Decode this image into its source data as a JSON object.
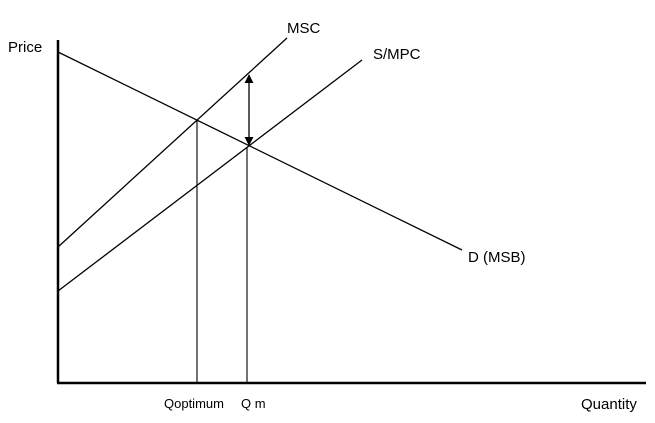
{
  "axes": {
    "y_label": "Price",
    "x_label": "Quantity"
  },
  "curves": {
    "msc": "MSC",
    "supply": "S/MPC",
    "demand": "D (MSB)"
  },
  "quantities": {
    "q_optimum": "Qoptimum",
    "q_market": "Q m"
  },
  "colors": {
    "ink": "#000000",
    "background": "#ffffff"
  }
}
